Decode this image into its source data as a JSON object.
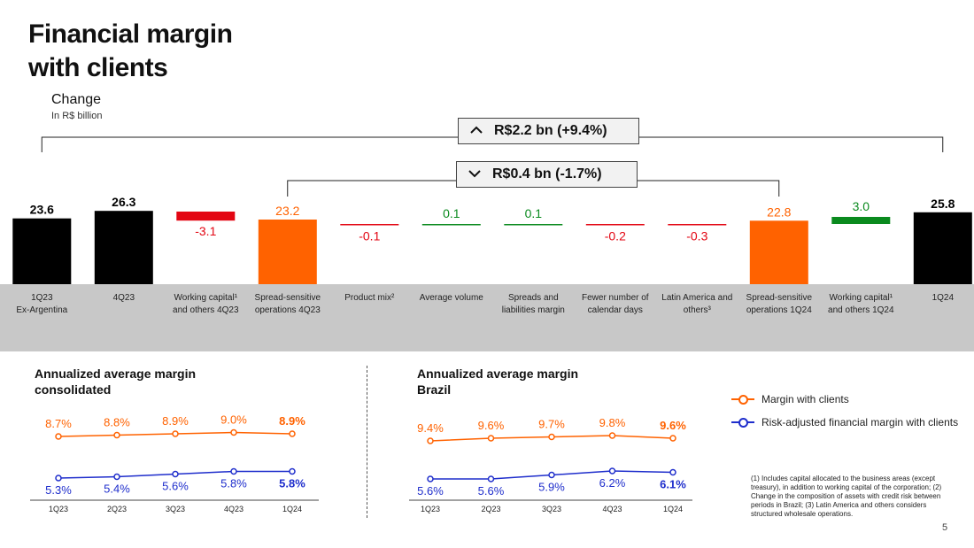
{
  "header": {
    "title": "Financial margin\nwith clients",
    "change_title": "Change",
    "change_unit": "In R$ billion"
  },
  "colors": {
    "black": "#000000",
    "orange": "#ff6200",
    "red": "#e30613",
    "green": "#0a8a1e",
    "blue": "#1f2ecc",
    "gray_band": "#c8c8c8"
  },
  "brackets": {
    "outer": {
      "glyph": "^",
      "label": "R$2.2 bn (+9.4%)"
    },
    "inner": {
      "glyph": "v",
      "label": "R$0.4 bn (-1.7%)"
    }
  },
  "chart_data": [
    {
      "type": "bar",
      "subtype": "waterfall",
      "categories": [
        "1Q23\nEx-Argentina",
        "4Q23",
        "Working capital¹\nand others 4Q23",
        "Spread-sensitive\noperations 4Q23",
        "Product mix²",
        "Average volume",
        "Spreads and\nliabilities margin",
        "Fewer number of\ncalendar days",
        "Latin America and\nothers³",
        "Spread-sensitive\noperations 1Q24",
        "Working capital¹\nand others 1Q24",
        "1Q24"
      ],
      "labels": [
        "23.6",
        "26.3",
        "-3.1",
        "23.2",
        "-0.1",
        "0.1",
        "0.1",
        "-0.2",
        "-0.3",
        "22.8",
        "3.0",
        "25.8"
      ],
      "values": [
        23.6,
        26.3,
        -3.1,
        23.2,
        -0.1,
        0.1,
        0.1,
        -0.2,
        -0.3,
        22.8,
        3.0,
        25.8
      ],
      "kinds": [
        "total",
        "total",
        "delta",
        "subtotal",
        "delta",
        "delta",
        "delta",
        "delta",
        "delta",
        "subtotal",
        "delta",
        "total"
      ]
    },
    {
      "type": "line",
      "title": "Annualized average margin\nconsolidated",
      "categories": [
        "1Q23",
        "2Q23",
        "3Q23",
        "4Q23",
        "1Q24"
      ],
      "series": [
        {
          "name": "Margin with clients",
          "values": [
            8.7,
            8.8,
            8.9,
            9.0,
            8.9
          ],
          "labels": [
            "8.7%",
            "8.8%",
            "8.9%",
            "9.0%",
            "8.9%"
          ]
        },
        {
          "name": "Risk-adjusted financial margin with clients",
          "values": [
            5.3,
            5.4,
            5.6,
            5.8,
            5.8
          ],
          "labels": [
            "5.3%",
            "5.4%",
            "5.6%",
            "5.8%",
            "5.8%"
          ]
        }
      ]
    },
    {
      "type": "line",
      "title": "Annualized average margin\nBrazil",
      "categories": [
        "1Q23",
        "2Q23",
        "3Q23",
        "4Q23",
        "1Q24"
      ],
      "series": [
        {
          "name": "Margin with clients",
          "values": [
            9.4,
            9.6,
            9.7,
            9.8,
            9.6
          ],
          "labels": [
            "9.4%",
            "9.6%",
            "9.7%",
            "9.8%",
            "9.6%"
          ]
        },
        {
          "name": "Risk-adjusted financial margin with clients",
          "values": [
            5.6,
            5.6,
            5.9,
            6.2,
            6.1
          ],
          "labels": [
            "5.6%",
            "5.6%",
            "5.9%",
            "6.2%",
            "6.1%"
          ]
        }
      ]
    }
  ],
  "legend": [
    {
      "label": "Margin with clients"
    },
    {
      "label": "Risk-adjusted financial margin with clients"
    }
  ],
  "footnote": "(1) Includes capital allocated to the business areas (except treasury), in addition to working capital of the corporation; (2) Change in the composition of assets with credit risk between periods in Brazil; (3) Latin America and others considers structured wholesale operations.",
  "page_number": "5"
}
